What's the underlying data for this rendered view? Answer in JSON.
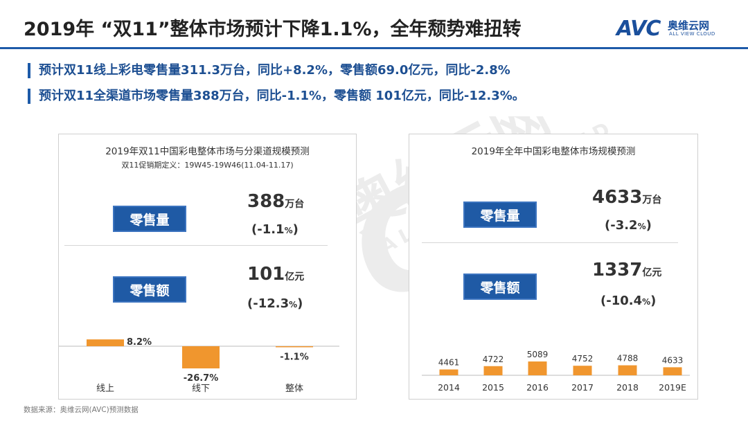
{
  "header": {
    "title": "2019年 “双11”整体市场预计下降1.1%，全年颓势难扭转",
    "logo_mark": "AVC",
    "logo_cn": "奥维云网",
    "logo_en": "ALL VIEW CLOUD"
  },
  "bullets": [
    "预计双11线上彩电零售量311.3万台，同比+8.2%，零售额69.0亿元，同比-2.8%",
    "预计双11全渠道市场零售量388万台，同比-1.1%，零售额 101亿元，同比-12.3%。"
  ],
  "left_panel": {
    "title": "2019年双11中国彩电整体市场与分渠道规模预测",
    "subtitle": "双11促销期定义：19W45-19W46(11.04-11.17)",
    "volume": {
      "label": "零售量",
      "value": "388",
      "unit": "万台",
      "change_open": "(-1.1",
      "change_pct": "%",
      "change_close": ")"
    },
    "amount": {
      "label": "零售额",
      "value": "101",
      "unit": "亿元",
      "change_open": "(-12.3",
      "change_pct": "%",
      "change_close": ")"
    }
  },
  "right_panel": {
    "title": "2019年全年中国彩电整体市场规模预测",
    "volume": {
      "label": "零售量",
      "value": "4633",
      "unit": "万台",
      "change_open": "(-3.2",
      "change_pct": "%",
      "change_close": ")"
    },
    "amount": {
      "label": "零售额",
      "value": "1337",
      "unit": "亿元",
      "change_open": "(-10.4",
      "change_pct": "%",
      "change_close": ")"
    }
  },
  "footnote": "数据来源：奥维云网(AVC)预测数据",
  "colors": {
    "bar": "#f0962e",
    "brand_blue": "#1d5aa8",
    "box_blue": "#1f5aa5"
  },
  "chart_data": [
    {
      "type": "bar",
      "title": "",
      "categories": [
        "线上",
        "线下",
        "整体"
      ],
      "values": [
        8.2,
        -26.7,
        -1.1
      ],
      "value_labels": [
        "8.2%",
        "-26.7%",
        "-1.1%"
      ],
      "ylim": [
        -30,
        10
      ],
      "grid": false,
      "legend": "none"
    },
    {
      "type": "bar",
      "title": "",
      "categories": [
        "2014",
        "2015",
        "2016",
        "2017",
        "2018",
        "2019E"
      ],
      "values": [
        4461,
        4722,
        5089,
        4752,
        4788,
        4633
      ],
      "value_labels": [
        "4461",
        "4722",
        "5089",
        "4752",
        "4788",
        "4633"
      ],
      "ylim": [
        4000,
        5500
      ],
      "grid": false,
      "legend": "none"
    }
  ]
}
